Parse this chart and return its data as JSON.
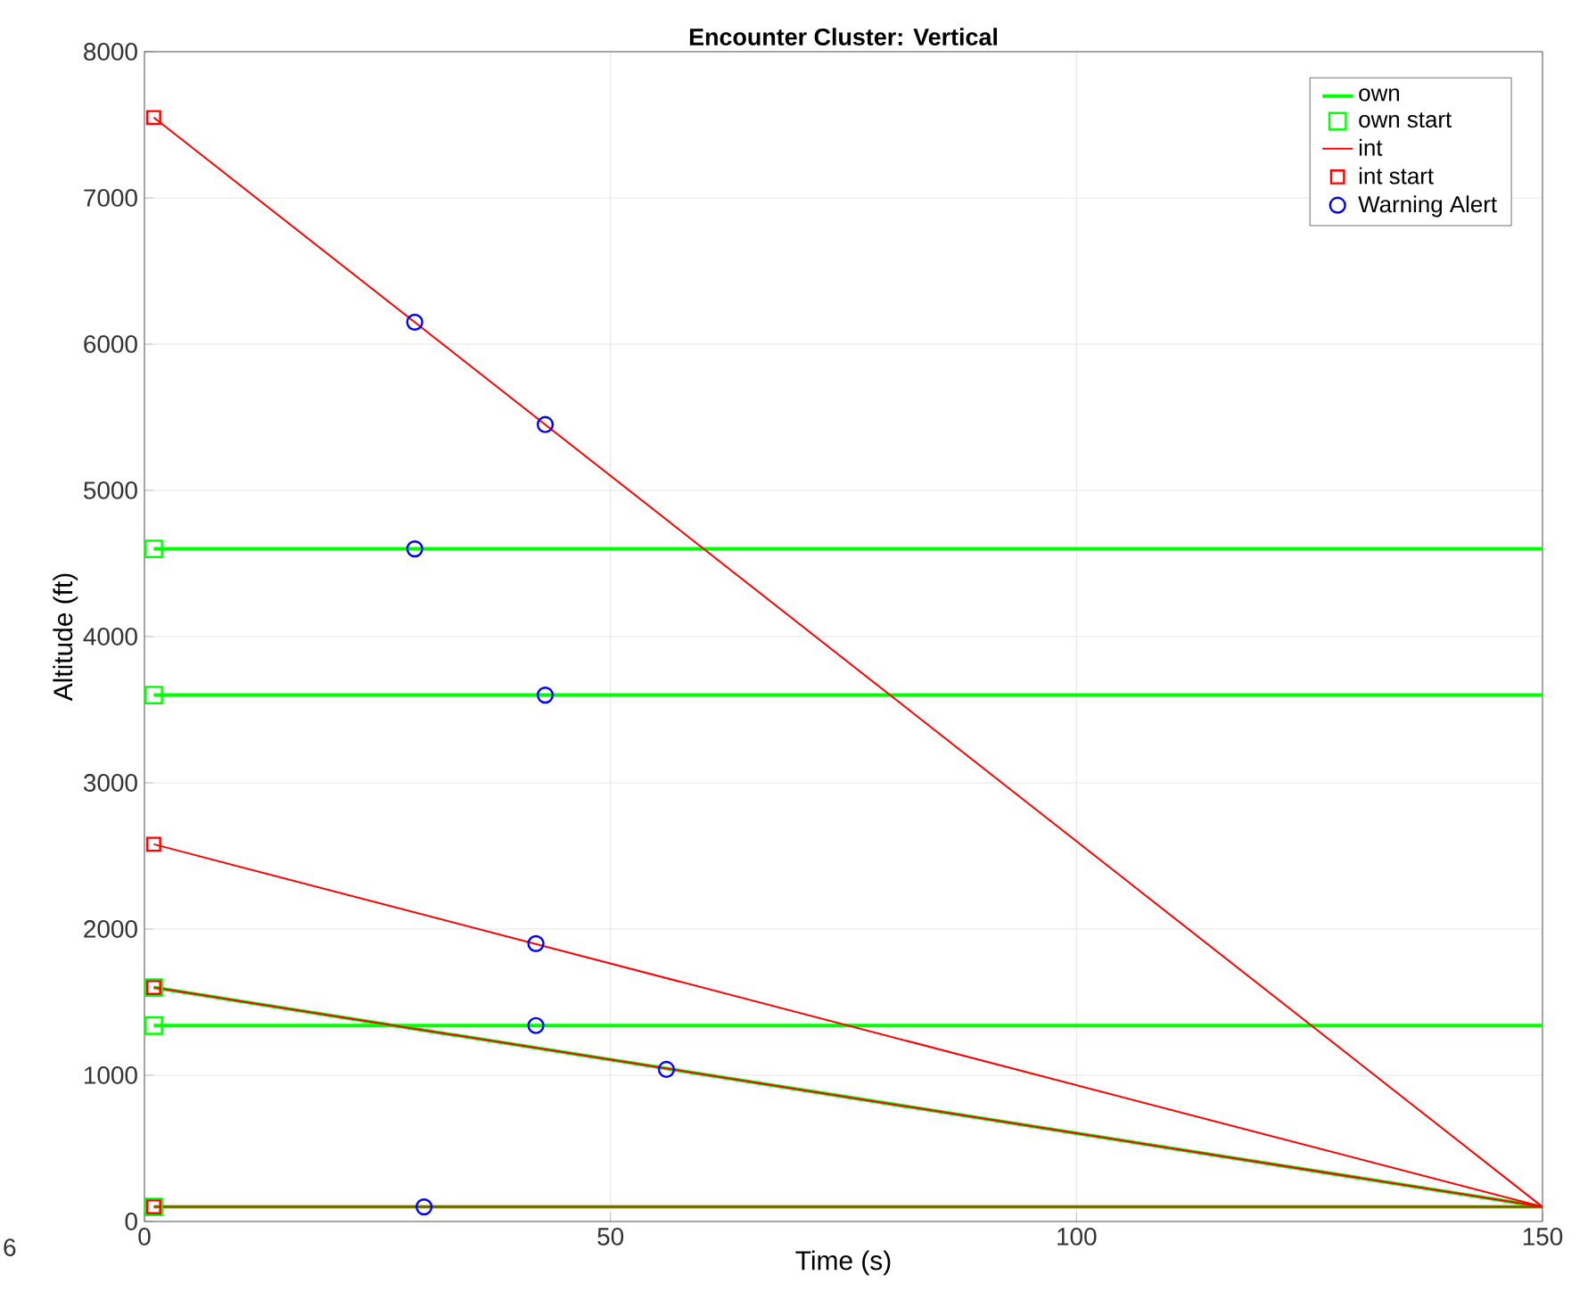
{
  "chart_data": {
    "type": "line",
    "title": "Encounter Cluster: Vertical",
    "xlabel": "Time (s)",
    "ylabel": "Altitude (ft)",
    "xlim": [
      0,
      150
    ],
    "xticks": [
      0,
      50,
      100,
      150
    ],
    "ylim": [
      0,
      8000
    ],
    "yticks": [
      0,
      1000,
      2000,
      3000,
      4000,
      5000,
      6000,
      7000,
      8000
    ],
    "grid": true,
    "legend": "top right",
    "annotations": [
      "6"
    ],
    "series": [
      {
        "name": "own",
        "color": "#00ff00",
        "x": [
          1,
          150
        ],
        "values": [
          4600,
          4600
        ]
      },
      {
        "color": "#00ff00",
        "x": [
          1,
          150
        ],
        "values": [
          3600,
          3600
        ]
      },
      {
        "color": "#00ff00",
        "x": [
          1,
          150
        ],
        "values": [
          1340,
          1340
        ]
      },
      {
        "color": "#00ff00",
        "x": [
          1,
          150
        ],
        "values": [
          1600,
          100
        ]
      },
      {
        "color": "#00ff00",
        "x": [
          1,
          150
        ],
        "values": [
          100,
          100
        ]
      },
      {
        "name": "own start",
        "type": "scatter",
        "marker": "square",
        "color": "#00ff00",
        "x": [
          1,
          1,
          1,
          1,
          1
        ],
        "values": [
          4600,
          3600,
          1340,
          1600,
          100
        ]
      },
      {
        "name": "int",
        "color": "#ff0000",
        "x": [
          1,
          150
        ],
        "values": [
          7550,
          100
        ]
      },
      {
        "color": "#ff0000",
        "x": [
          1,
          150
        ],
        "values": [
          2580,
          100
        ]
      },
      {
        "color": "#ff0000",
        "x": [
          1,
          150
        ],
        "values": [
          1600,
          100
        ]
      },
      {
        "color": "#ff0000",
        "x": [
          1,
          150
        ],
        "values": [
          100,
          100
        ]
      },
      {
        "name": "int start",
        "type": "scatter",
        "marker": "square",
        "color": "#ff0000",
        "x": [
          1,
          1,
          1,
          1
        ],
        "values": [
          7550,
          2580,
          1600,
          100
        ]
      },
      {
        "name": "Warning Alert",
        "type": "scatter",
        "marker": "circle",
        "color": "#0000ff",
        "x": [
          29,
          43,
          29,
          43,
          42,
          42,
          56,
          30
        ],
        "values": [
          6150,
          5450,
          4600,
          3600,
          1900,
          1340,
          1040,
          100
        ]
      }
    ]
  }
}
